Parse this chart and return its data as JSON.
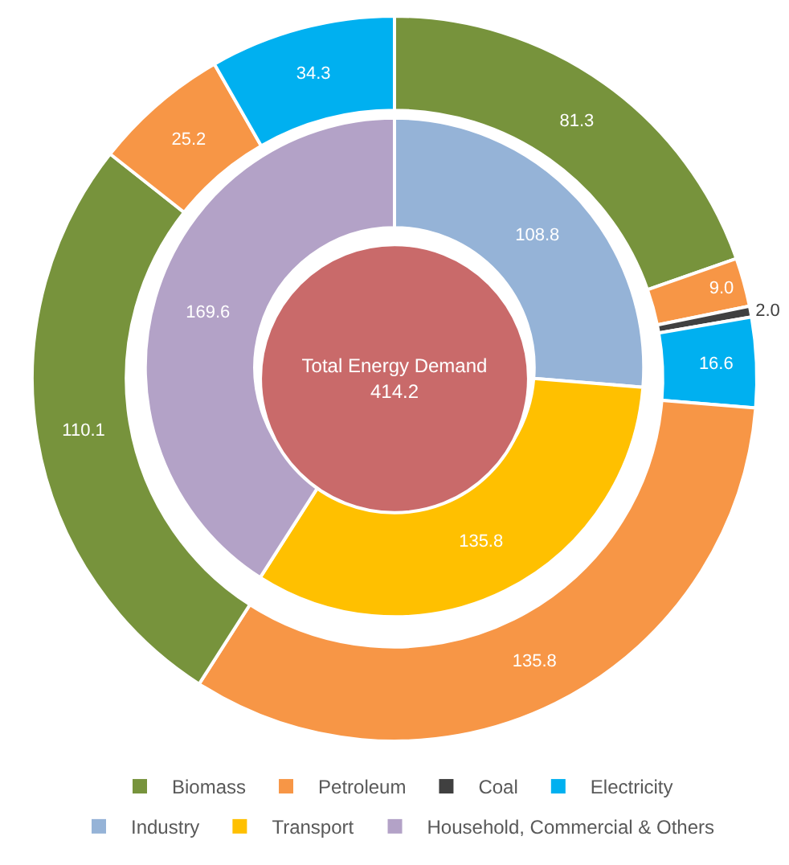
{
  "chart_data": [
    {
      "type": "donut",
      "legend": "bottom",
      "categories": [
        "Biomass",
        "Petroleum",
        "Coal",
        "Electricity",
        null,
        null,
        null,
        null
      ],
      "values": [
        81.3,
        9.0,
        2.0,
        16.6,
        135.8,
        110.1,
        25.2,
        34.3
      ],
      "value_labels": [
        "81.3",
        "9.0",
        "2.0",
        "16.6",
        "135.8",
        "110.1",
        "25.2",
        "34.3"
      ],
      "colors": [
        "#77933c",
        "#f79646",
        "#404040",
        "#00b0f0",
        "#f79646",
        "#77933c",
        "#f79646",
        "#00b0f0"
      ]
    },
    {
      "type": "donut",
      "legend": "bottom",
      "categories": [
        "Industry",
        "Transport",
        "Household, Commercial & Others"
      ],
      "values": [
        108.8,
        135.8,
        169.6
      ],
      "value_labels": [
        "108.8",
        "135.8",
        "169.6"
      ],
      "colors": [
        "#95b3d7",
        "#ffc000",
        "#b3a2c7"
      ]
    },
    {
      "type": "pie",
      "categories": [
        "Total Energy Demand"
      ],
      "values": [
        414.2
      ],
      "value_labels": [
        "414.2"
      ],
      "colors": [
        "#c96a6a"
      ]
    }
  ]
}
